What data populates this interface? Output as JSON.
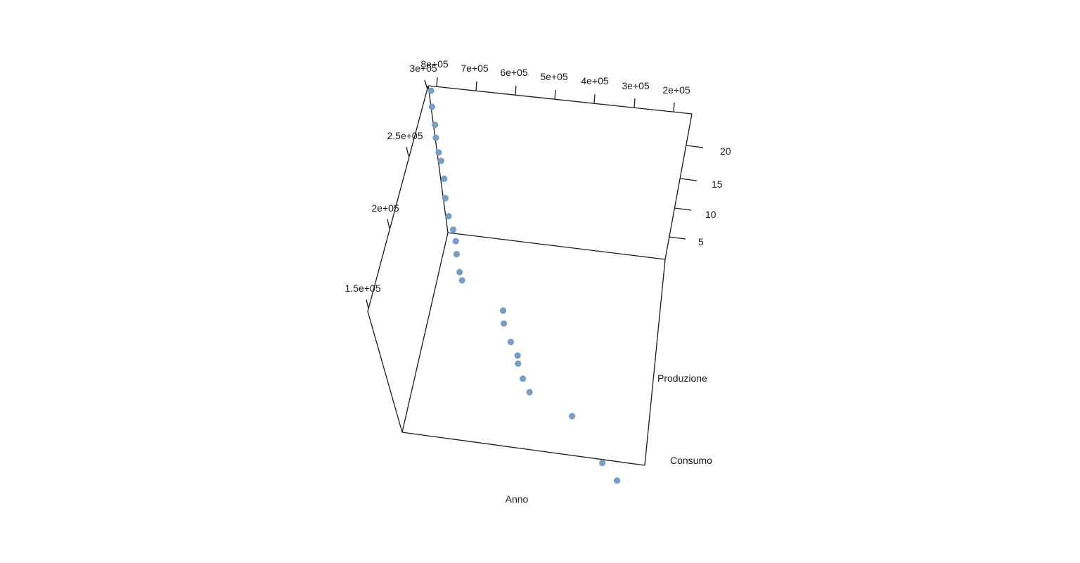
{
  "chart_data": {
    "type": "scatter",
    "projection": "3d",
    "title": "",
    "axes": {
      "x": {
        "label": "Anno"
      },
      "y": {
        "label": "Produzione",
        "ticks": [
          "8e+05",
          "7e+05",
          "6e+05",
          "5e+05",
          "4e+05",
          "3e+05",
          "2e+05"
        ]
      },
      "z": {
        "label": "Consumo",
        "ticks": [
          "3e+05",
          "2.5e+05",
          "2e+05",
          "1.5e+05"
        ]
      },
      "w": {
        "ticks": [
          "20",
          "15",
          "10",
          "5"
        ]
      }
    },
    "point_color": "#779ec4",
    "box_color": "#1a1a1a",
    "grid": false,
    "legend": "none",
    "points": [
      {
        "anno": 1,
        "produzione": 800000,
        "consumo": 300000
      },
      {
        "anno": 2,
        "produzione": 800000,
        "consumo": 290000
      },
      {
        "anno": 3,
        "produzione": 795000,
        "consumo": 279000
      },
      {
        "anno": 4,
        "produzione": 795000,
        "consumo": 271000
      },
      {
        "anno": 5,
        "produzione": 790000,
        "consumo": 262000
      },
      {
        "anno": 6,
        "produzione": 785000,
        "consumo": 257000
      },
      {
        "anno": 7,
        "produzione": 780000,
        "consumo": 246000
      },
      {
        "anno": 8,
        "produzione": 780000,
        "consumo": 234000
      },
      {
        "anno": 9,
        "produzione": 775000,
        "consumo": 223000
      },
      {
        "anno": 10,
        "produzione": 765000,
        "consumo": 215000
      },
      {
        "anno": 11,
        "produzione": 760000,
        "consumo": 208000
      },
      {
        "anno": 12,
        "produzione": 760000,
        "consumo": 200000
      },
      {
        "anno": 13,
        "produzione": 755000,
        "consumo": 189000
      },
      {
        "anno": 14,
        "produzione": 750000,
        "consumo": 184000
      },
      {
        "anno": 15,
        "produzione": 650000,
        "consumo": 168000
      },
      {
        "anno": 16,
        "produzione": 650000,
        "consumo": 160000
      },
      {
        "anno": 17,
        "produzione": 635000,
        "consumo": 149000
      },
      {
        "anno": 18,
        "produzione": 620000,
        "consumo": 141000
      },
      {
        "anno": 19,
        "produzione": 620000,
        "consumo": 136000
      },
      {
        "anno": 20,
        "produzione": 610000,
        "consumo": 127000
      },
      {
        "anno": 21,
        "produzione": 595000,
        "consumo": 119000
      },
      {
        "anno": 22,
        "produzione": 490000,
        "consumo": 107000
      },
      {
        "anno": 23,
        "produzione": 420000,
        "consumo": 80000
      },
      {
        "anno": 24,
        "produzione": 385000,
        "consumo": 70000
      }
    ]
  }
}
